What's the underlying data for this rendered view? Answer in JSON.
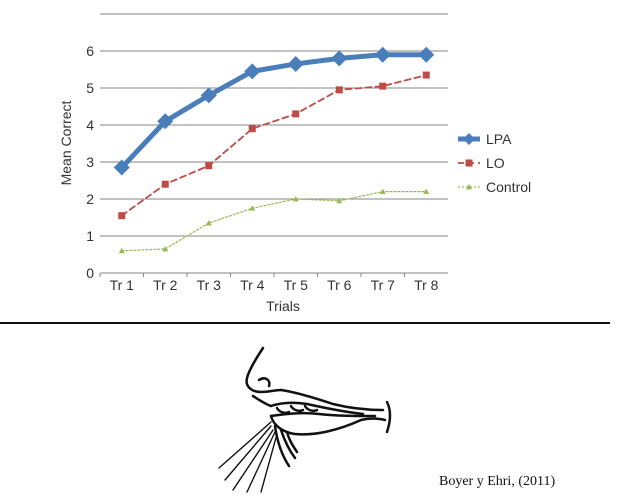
{
  "chart_data": {
    "type": "line",
    "title": "",
    "xlabel": "Trials",
    "ylabel": "Mean Correct",
    "categories": [
      "Tr 1",
      "Tr 2",
      "Tr 3",
      "Tr 4",
      "Tr 5",
      "Tr 6",
      "Tr 7",
      "Tr 8"
    ],
    "ylim": [
      0,
      7
    ],
    "yticks": [
      0,
      1,
      2,
      3,
      4,
      5,
      6
    ],
    "grid": true,
    "legend_position": "right",
    "series": [
      {
        "name": "LPA",
        "values": [
          2.85,
          4.1,
          4.8,
          5.45,
          5.65,
          5.8,
          5.9,
          5.9
        ],
        "color": "#4a7ebb",
        "marker": "diamond",
        "line_style": "solid"
      },
      {
        "name": "LO",
        "values": [
          1.55,
          2.4,
          2.9,
          3.9,
          4.3,
          4.95,
          5.05,
          5.35
        ],
        "color": "#be4b48",
        "marker": "square",
        "line_style": "dashed"
      },
      {
        "name": "Control",
        "values": [
          0.6,
          0.65,
          1.35,
          1.75,
          2.0,
          1.95,
          2.2,
          2.2
        ],
        "color": "#98b954",
        "marker": "triangle",
        "line_style": "dotted"
      }
    ]
  },
  "citation": "Boyer y Ehri, (2011)",
  "illustration": "mouth-breath-icon"
}
